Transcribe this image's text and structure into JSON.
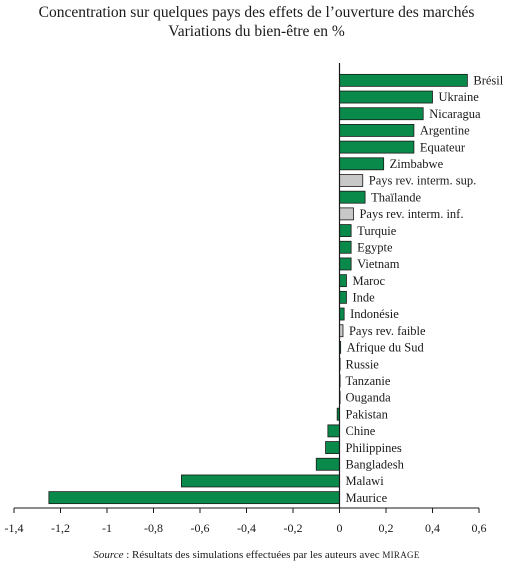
{
  "chart_data": {
    "type": "bar",
    "orientation": "horizontal",
    "title": "Concentration sur quelques pays des effets de l’ouverture des marchés",
    "subtitle": "Variations du bien-être en %",
    "xlim": [
      -1.4,
      0.6
    ],
    "x_ticks": [
      "-1,4",
      "-1,2",
      "-1",
      "-0,8",
      "-0,6",
      "-0,4",
      "-0,2",
      "0",
      "0,2",
      "0,4",
      "0,6"
    ],
    "x_tick_values": [
      -1.4,
      -1.2,
      -1.0,
      -0.8,
      -0.6,
      -0.4,
      -0.2,
      0,
      0.2,
      0.4,
      0.6
    ],
    "categories": [
      "Brésil",
      "Ukraine",
      "Nicaragua",
      "Argentine",
      "Equateur",
      "Zimbabwe",
      "Pays rev. interm. sup.",
      "Thaïlande",
      "Pays rev. interm. inf.",
      "Turquie",
      "Egypte",
      "Vietnam",
      "Maroc",
      "Inde",
      "Indonésie",
      "Pays rev. faible",
      "Afrique du Sud",
      "Russie",
      "Tanzanie",
      "Ouganda",
      "Pakistan",
      "Chine",
      "Philippines",
      "Bangladesh",
      "Malawi",
      "Maurice"
    ],
    "values": [
      0.55,
      0.4,
      0.36,
      0.32,
      0.32,
      0.19,
      0.1,
      0.11,
      0.06,
      0.05,
      0.05,
      0.05,
      0.03,
      0.03,
      0.02,
      0.015,
      0.005,
      0.0,
      0.0,
      0.0,
      -0.01,
      -0.05,
      -0.06,
      -0.1,
      -0.68,
      -1.25
    ],
    "bar_colors": [
      "#0a8a4a",
      "#0a8a4a",
      "#0a8a4a",
      "#0a8a4a",
      "#0a8a4a",
      "#0a8a4a",
      "#c8c8c8",
      "#0a8a4a",
      "#c8c8c8",
      "#0a8a4a",
      "#0a8a4a",
      "#0a8a4a",
      "#0a8a4a",
      "#0a8a4a",
      "#0a8a4a",
      "#c8c8c8",
      "#0a8a4a",
      "#0a8a4a",
      "#0a8a4a",
      "#0a8a4a",
      "#0a8a4a",
      "#0a8a4a",
      "#0a8a4a",
      "#0a8a4a",
      "#0a8a4a",
      "#0a8a4a"
    ],
    "grid": false,
    "legend": "none"
  },
  "source": {
    "label": "Source",
    "text": " : Résultats des simulations effectuées par les auteurs avec ",
    "model": "MIRAGE"
  }
}
